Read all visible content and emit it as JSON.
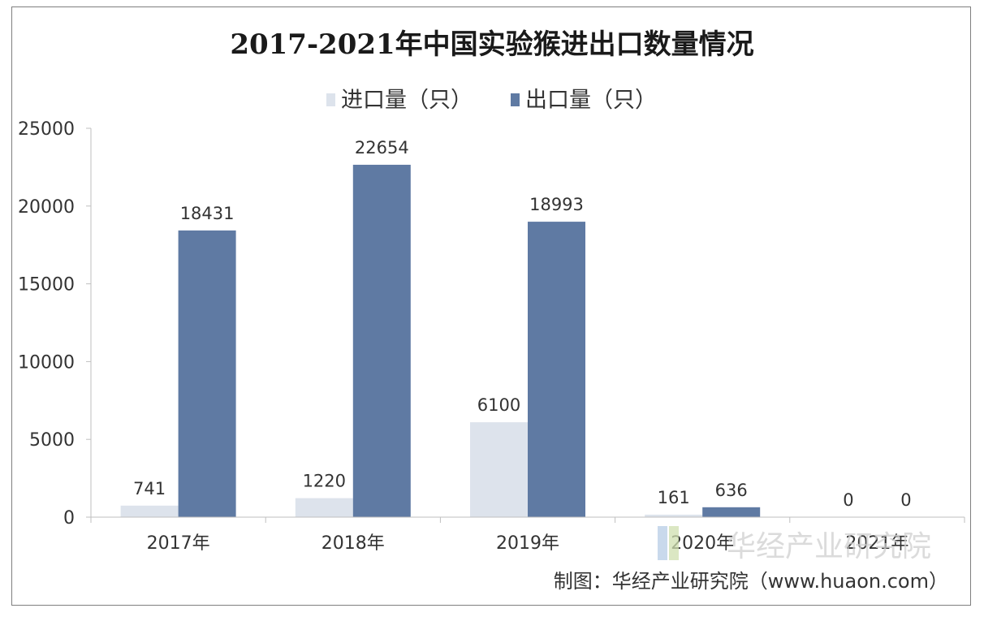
{
  "chart_data": {
    "type": "bar",
    "title": "2017-2021年中国实验猴进出口数量情况",
    "categories": [
      "2017年",
      "2018年",
      "2019年",
      "2020年",
      "2021年"
    ],
    "series": [
      {
        "name": "进口量（只）",
        "values": [
          741,
          1220,
          6100,
          161,
          0
        ],
        "color": "#dde3ec"
      },
      {
        "name": "出口量（只）",
        "values": [
          18431,
          22654,
          18993,
          636,
          0
        ],
        "color": "#5f7aa3"
      }
    ],
    "data_labels": {
      "import": [
        "741",
        "1220",
        "6100",
        "161",
        "0"
      ],
      "export": [
        "18431",
        "22654",
        "18993",
        "636",
        "0"
      ]
    },
    "yticks": [
      "0",
      "5000",
      "10000",
      "15000",
      "20000",
      "25000"
    ],
    "ylim": [
      0,
      25000
    ],
    "legend_position": "top-center",
    "grid": false
  },
  "credit": "制图：华经产业研究院（www.huaon.com）",
  "watermark": "华经产业研究院"
}
